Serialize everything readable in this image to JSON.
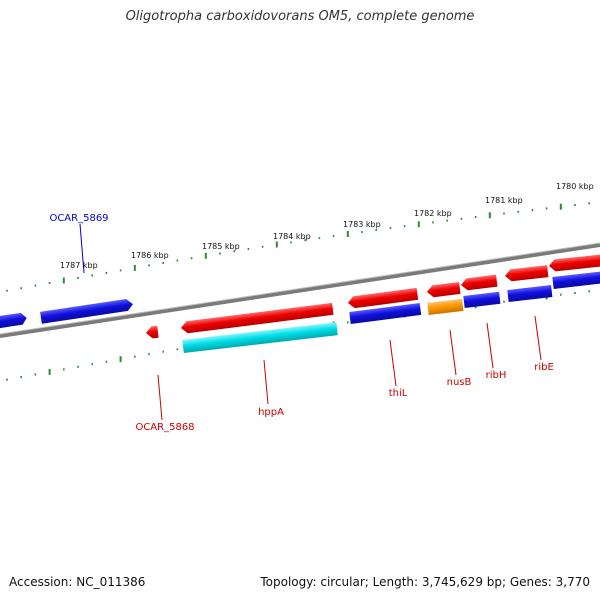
{
  "title": "Oligotropha carboxidovorans OM5, complete genome",
  "footer": {
    "accession": "Accession: NC_011386",
    "summary": "Topology: circular; Length: 3,745,629 bp; Genes: 3,770"
  },
  "colors": {
    "forward_cds": "#ee0000",
    "reverse_cds": "#1010dd",
    "rna": "#00dde6",
    "highlight": "#ff9900",
    "backbone": "#7a7a7a",
    "tick": "#2e8b2e",
    "label_red": "#cc0000",
    "label_blue": "#0000cc"
  },
  "kbp_labels": [
    "1787 kbp",
    "1786 kbp",
    "1785 kbp",
    "1784 kbp",
    "1783 kbp",
    "1782 kbp",
    "1781 kbp",
    "1780 kbp"
  ],
  "gene_labels": {
    "ocar_5869": "OCAR_5869",
    "ocar_5868": "OCAR_5868",
    "hppa": "hppA",
    "thil": "thiL",
    "nusb": "nusB",
    "ribh": "ribH",
    "ribe": "ribE"
  }
}
